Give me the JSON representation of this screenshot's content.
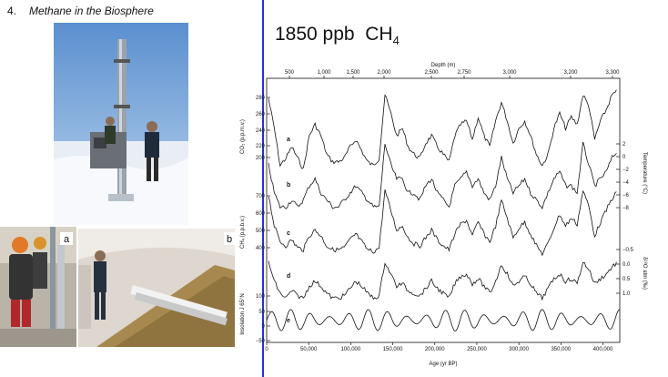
{
  "slide": {
    "number": "4.",
    "title": "Methane in the Biosphere",
    "big_value": "1850 ppb",
    "formula_base": "CH",
    "formula_sub": "4"
  },
  "photos": {
    "top_icon": "ice-core-drill-photo",
    "left_icon": "ice-core-handling-photo",
    "left_label": "a",
    "right_icon": "ice-core-trench-photo",
    "right_label": "b"
  },
  "chart_data": {
    "type": "line",
    "depth_axis": {
      "label": "Depth (m)",
      "ticks": [
        "500",
        "1,000",
        "1,500",
        "2,000",
        "2,500",
        "2,750",
        "3,000",
        "3,200",
        "3,300"
      ]
    },
    "age_axis": {
      "label": "Age (yr BP)",
      "ticks": [
        "0",
        "50,000",
        "100,000",
        "150,000",
        "200,000",
        "250,000",
        "300,000",
        "350,000",
        "400,000"
      ],
      "range": [
        0,
        420000
      ]
    },
    "left_axes": [
      {
        "label": "CO₂ (p.p.m.v.)",
        "ticks": [
          "280",
          "260",
          "240",
          "220",
          "200"
        ]
      },
      {
        "label": "CH₄ (p.p.b.v.)",
        "ticks": [
          "700",
          "600",
          "500",
          "400"
        ]
      },
      {
        "label": "Insolation J 65°N",
        "ticks": [
          "100",
          "50",
          "0",
          "−50"
        ]
      }
    ],
    "right_axes": [
      {
        "label": "Temperature (°C)",
        "ticks": [
          "2",
          "0",
          "−2",
          "−4",
          "−6",
          "−8"
        ]
      },
      {
        "label": "δ¹⁸O atm (‰)",
        "ticks": [
          "−0.5",
          "0.0",
          "0.5",
          "1.0"
        ]
      }
    ],
    "series": [
      {
        "name": "a",
        "values": [
          280,
          240,
          190,
          200,
          215,
          200,
          185,
          230,
          245,
          230,
          205,
          195,
          195,
          200,
          215,
          225,
          210,
          195,
          190,
          200,
          285,
          260,
          230,
          240,
          215,
          205,
          200,
          220,
          230,
          215,
          205,
          195,
          230,
          245,
          250,
          225,
          255,
          230,
          215,
          250,
          275,
          250,
          220,
          240,
          250,
          230,
          205,
          190,
          205,
          240,
          260,
          240,
          255,
          245,
          285,
          270,
          225,
          250,
          265,
          285,
          290
        ]
      },
      {
        "name": "b",
        "values": [
          -2,
          -6,
          -8,
          -8,
          -7,
          -8,
          -7,
          -5,
          -4,
          -6,
          -7,
          -8,
          -8,
          -7,
          -6,
          -5,
          -6,
          -7,
          -8,
          -8,
          1,
          -2,
          -4,
          -4,
          -6,
          -6,
          -7,
          -5,
          -4,
          -6,
          -7,
          -8,
          -5,
          -4,
          -3,
          -5,
          -4,
          -6,
          -7,
          -5,
          -1,
          -4,
          -6,
          -5,
          -4,
          -6,
          -7,
          -8,
          -6,
          -4,
          -3,
          -5,
          -5,
          -6,
          1,
          -2,
          -5,
          -4,
          -3,
          -1,
          0
        ]
      },
      {
        "name": "c",
        "values": [
          680,
          520,
          440,
          420,
          450,
          410,
          400,
          470,
          500,
          470,
          420,
          400,
          400,
          410,
          450,
          480,
          440,
          400,
          390,
          410,
          700,
          600,
          500,
          520,
          460,
          430,
          420,
          460,
          500,
          450,
          420,
          400,
          480,
          530,
          550,
          470,
          540,
          480,
          440,
          520,
          650,
          560,
          460,
          510,
          540,
          480,
          420,
          380,
          430,
          510,
          580,
          520,
          560,
          530,
          700,
          620,
          470,
          540,
          600,
          660,
          700
        ]
      },
      {
        "name": "d",
        "values": [
          -0.5,
          0.3,
          0.8,
          1.0,
          0.7,
          0.9,
          1.0,
          0.5,
          0.3,
          0.5,
          0.8,
          1.0,
          1.0,
          0.9,
          0.6,
          0.3,
          0.5,
          0.8,
          1.0,
          0.9,
          -0.5,
          0.0,
          0.5,
          0.4,
          0.7,
          0.8,
          0.9,
          0.6,
          0.3,
          0.6,
          0.8,
          1.0,
          0.4,
          0.1,
          0.0,
          0.4,
          0.2,
          0.5,
          0.8,
          0.3,
          -0.4,
          0.0,
          0.5,
          0.3,
          0.1,
          0.4,
          0.8,
          1.0,
          0.6,
          0.2,
          0.0,
          0.3,
          0.2,
          0.4,
          -0.5,
          -0.2,
          0.4,
          0.2,
          0.0,
          -0.3,
          -0.5
        ]
      }
    ],
    "insolation": {
      "mean": 20,
      "amplitude": 45,
      "period_years": 23000
    },
    "series_labels": [
      "a",
      "b",
      "c",
      "d",
      "e"
    ]
  }
}
